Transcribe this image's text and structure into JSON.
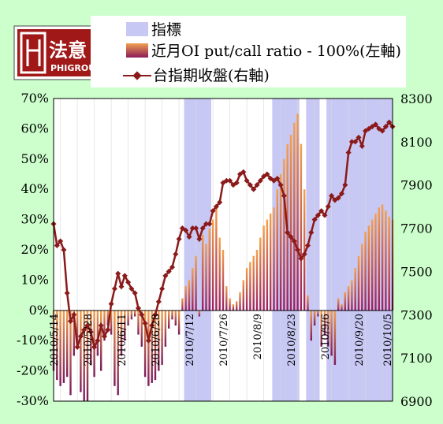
{
  "legend": {
    "items": [
      {
        "label": "指標",
        "color": "#c8c8f5"
      },
      {
        "label": "近月OI put/call ratio - 100%(左軸)",
        "color": "#f0a050"
      },
      {
        "label": "台指期收盤(右軸)",
        "color": "#8b1a1a"
      }
    ]
  },
  "logo": {
    "brand": "法意",
    "sub": "PHIGROUP"
  },
  "chart_data": {
    "type": "bar+line",
    "left_axis": {
      "min": -30,
      "max": 70,
      "step": 10,
      "unit": "%"
    },
    "right_axis": {
      "min": 6900,
      "max": 8300,
      "step": 200
    },
    "x_tick_labels": [
      "2010/5/14",
      "2010/5/28",
      "2010/6/11",
      "2010/6/28",
      "2010/7/12",
      "2010/7/26",
      "2010/8/9",
      "2010/8/23",
      "2010/9/6",
      "2010/9/20",
      "2010/10/5"
    ],
    "x_tick_index": [
      0,
      10,
      20,
      30,
      40,
      50,
      60,
      70,
      80,
      90,
      100
    ],
    "shaded_ranges": [
      [
        39,
        46
      ],
      [
        65,
        72
      ],
      [
        75,
        78
      ],
      [
        81,
        100
      ]
    ],
    "ratio_pct": [
      -20,
      -23,
      -25,
      -24,
      -22,
      -28,
      -15,
      -12,
      -27,
      -30,
      -30,
      -18,
      -22,
      -15,
      -20,
      -10,
      -5,
      -8,
      -25,
      -28,
      -15,
      -10,
      -5,
      -3,
      -2,
      -8,
      -12,
      -22,
      -25,
      -24,
      -23,
      -20,
      -18,
      -12,
      -6,
      -3,
      -5,
      -8,
      4,
      8,
      10,
      14,
      18,
      -2,
      25,
      22,
      27,
      30,
      35,
      24,
      20,
      8,
      4,
      2,
      3,
      6,
      10,
      14,
      16,
      18,
      20,
      24,
      28,
      30,
      32,
      34,
      40,
      45,
      50,
      55,
      58,
      62,
      65,
      55,
      40,
      5,
      -10,
      -5,
      -2,
      -12,
      -8,
      -12,
      -15,
      -18,
      4,
      2,
      6,
      8,
      10,
      14,
      18,
      22,
      26,
      28,
      30,
      32,
      34,
      35,
      33,
      31,
      30
    ],
    "close": [
      7720,
      7620,
      7640,
      7600,
      7400,
      7270,
      7300,
      7150,
      7200,
      7230,
      7250,
      7220,
      7150,
      7180,
      7250,
      7200,
      7230,
      7350,
      7420,
      7490,
      7430,
      7480,
      7450,
      7420,
      7400,
      7330,
      7300,
      7260,
      7180,
      7250,
      7300,
      7360,
      7420,
      7480,
      7500,
      7520,
      7580,
      7650,
      7700,
      7690,
      7660,
      7700,
      7700,
      7650,
      7700,
      7720,
      7720,
      7780,
      7800,
      7820,
      7910,
      7920,
      7920,
      7900,
      7910,
      7950,
      7960,
      7920,
      7900,
      7880,
      7900,
      7920,
      7940,
      7950,
      7930,
      7920,
      7930,
      7900,
      7850,
      7680,
      7660,
      7640,
      7600,
      7560,
      7580,
      7620,
      7680,
      7740,
      7760,
      7780,
      7760,
      7800,
      7850,
      7830,
      7840,
      7860,
      7900,
      8050,
      8100,
      8100,
      8120,
      8080,
      8150,
      8160,
      8170,
      8180,
      8160,
      8150,
      8170,
      8190,
      8170
    ]
  }
}
